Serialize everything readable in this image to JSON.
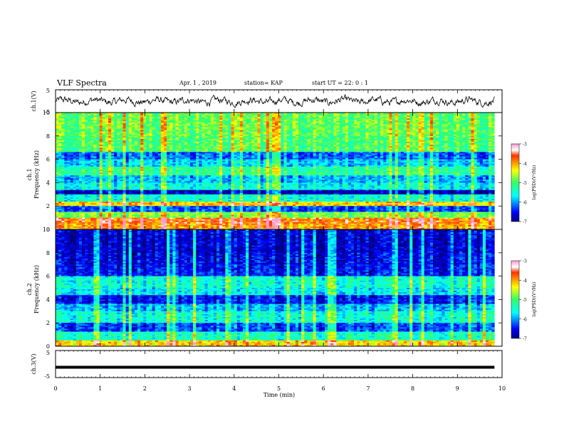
{
  "header": {
    "title": "VLF Spectra",
    "date": "Apr. 1 , 2019",
    "station": "station= KAP",
    "start": "start UT = 22: 0 : 1"
  },
  "panels": {
    "ch1_wave_label": "ch.1(V)",
    "ch1_spec_label": "ch.1",
    "ch2_spec_label": "ch.2",
    "ch3_wave_label": "ch.3(V)",
    "freq_label": "Frequency (kHz)",
    "time_label": "Time (min)",
    "colorbar_label": "log(PSD)(V²/Hz)"
  },
  "chart_data": [
    {
      "type": "line",
      "name": "ch1-waveform",
      "ylabel": "ch.1(V)",
      "ylim": [
        -5,
        5
      ],
      "y_ticks": [
        "5",
        "-5"
      ],
      "xlim": [
        0,
        10
      ],
      "x_range_data": [
        0,
        9.83
      ]
    },
    {
      "type": "heatmap",
      "name": "ch1-spectrogram",
      "ylabel": "Frequency (kHz)",
      "ylim": [
        0,
        10
      ],
      "y_ticks": [
        "0",
        "2",
        "4",
        "6",
        "8",
        "10"
      ],
      "xlim": [
        0,
        10
      ],
      "x_range_data": [
        0,
        9.83
      ],
      "bands_khz": [
        {
          "from": 0,
          "to": 0.5,
          "level": -4.0
        },
        {
          "from": 0.5,
          "to": 1.0,
          "level": -3.8
        },
        {
          "from": 1.0,
          "to": 1.5,
          "level": -4.8
        },
        {
          "from": 1.5,
          "to": 2.0,
          "level": -6.3
        },
        {
          "from": 2.0,
          "to": 2.4,
          "level": -4.2
        },
        {
          "from": 2.4,
          "to": 3.0,
          "level": -5.5
        },
        {
          "from": 3.0,
          "to": 3.4,
          "level": -6.8
        },
        {
          "from": 3.4,
          "to": 4.0,
          "level": -5.6
        },
        {
          "from": 4.0,
          "to": 4.6,
          "level": -5.9
        },
        {
          "from": 4.6,
          "to": 5.4,
          "level": -5.2
        },
        {
          "from": 5.4,
          "to": 6.0,
          "level": -5.8
        },
        {
          "from": 6.0,
          "to": 6.6,
          "level": -6.2
        },
        {
          "from": 6.6,
          "to": 8.0,
          "level": -5.0
        },
        {
          "from": 8.0,
          "to": 10.0,
          "level": -4.9
        }
      ],
      "colorbar": {
        "range": [
          -7,
          -3
        ],
        "ticks": [
          "-3",
          "-4",
          "-5",
          "-6",
          "-7"
        ]
      }
    },
    {
      "type": "heatmap",
      "name": "ch2-spectrogram",
      "ylabel": "Frequency (kHz)",
      "ylim": [
        0,
        10
      ],
      "y_ticks": [
        "0",
        "2",
        "4",
        "6",
        "8",
        "10"
      ],
      "xlim": [
        0,
        10
      ],
      "x_range_data": [
        0,
        9.83
      ],
      "bands_khz": [
        {
          "from": 0,
          "to": 0.5,
          "level": -4.2
        },
        {
          "from": 0.5,
          "to": 1.2,
          "level": -5.4
        },
        {
          "from": 1.2,
          "to": 2.0,
          "level": -6.3
        },
        {
          "from": 2.0,
          "to": 3.0,
          "level": -5.5
        },
        {
          "from": 3.0,
          "to": 3.6,
          "level": -5.9
        },
        {
          "from": 3.6,
          "to": 4.4,
          "level": -6.5
        },
        {
          "from": 4.4,
          "to": 5.0,
          "level": -5.7
        },
        {
          "from": 5.0,
          "to": 6.0,
          "level": -5.5
        },
        {
          "from": 6.0,
          "to": 7.0,
          "level": -6.5
        },
        {
          "from": 7.0,
          "to": 8.0,
          "level": -6.6
        },
        {
          "from": 8.0,
          "to": 10.0,
          "level": -6.7
        }
      ],
      "colorbar": {
        "range": [
          -7,
          -3
        ],
        "ticks": [
          "-3",
          "-4",
          "-5",
          "-6",
          "-7"
        ]
      }
    },
    {
      "type": "line",
      "name": "ch3-waveform",
      "ylabel": "ch.3(V)",
      "ylim": [
        -5,
        5
      ],
      "y_ticks": [
        "5",
        "-5"
      ],
      "xlim": [
        0,
        10
      ],
      "x_range_data": [
        0,
        9.83
      ],
      "constant_value": -1.2,
      "xlabel": "Time (min)",
      "x_ticks": [
        "0",
        "1",
        "2",
        "3",
        "4",
        "5",
        "6",
        "7",
        "8",
        "9",
        "10"
      ]
    }
  ]
}
